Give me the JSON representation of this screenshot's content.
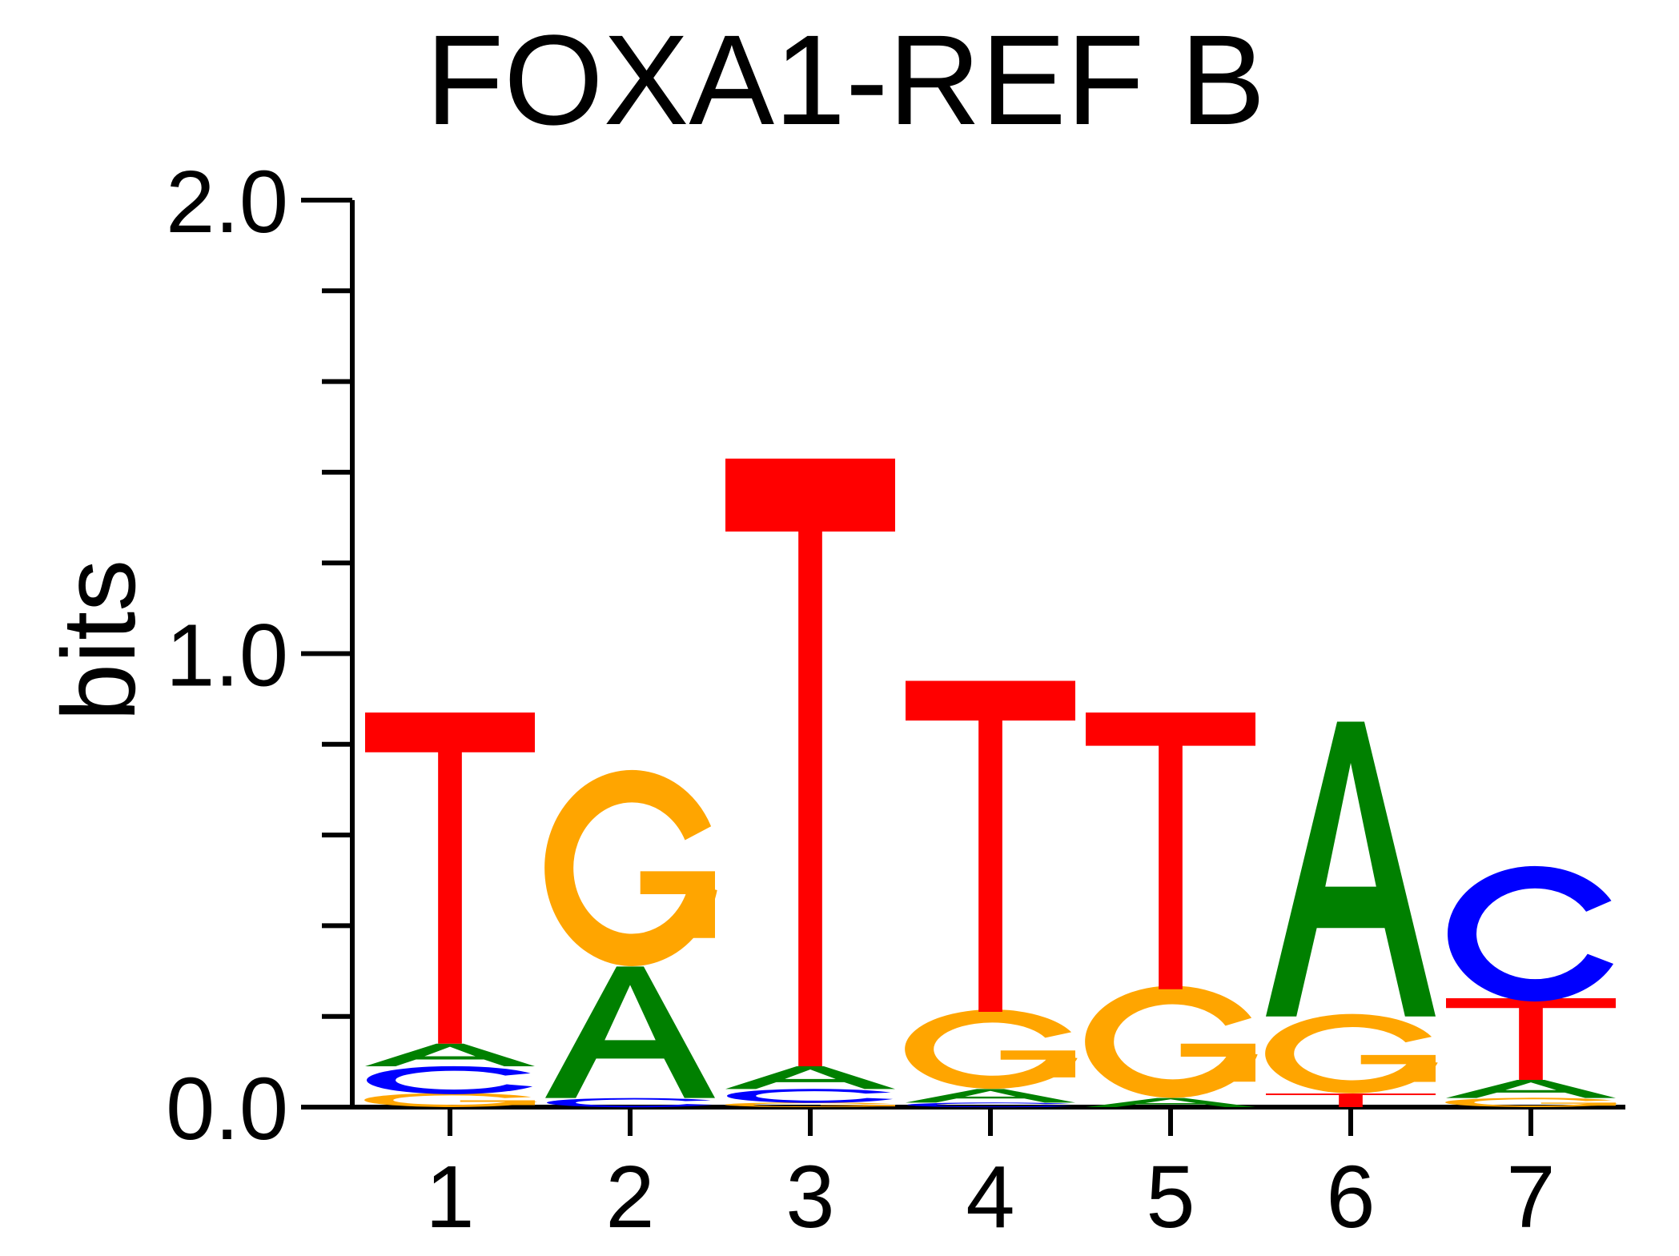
{
  "chart_data": {
    "type": "sequence-logo",
    "title": "FOXA1-REF B",
    "ylabel": "bits",
    "xlabel": "",
    "ylim": [
      0,
      2
    ],
    "yticks": [
      "0.0",
      "1.0",
      "2.0"
    ],
    "positions": [
      "1",
      "2",
      "3",
      "4",
      "5",
      "6",
      "7"
    ],
    "colors": {
      "A": "#008000",
      "C": "#0000ff",
      "G": "#ffa500",
      "T": "#ff0000"
    },
    "stacks": [
      [
        {
          "letter": "G",
          "bits": 0.03
        },
        {
          "letter": "C",
          "bits": 0.06
        },
        {
          "letter": "A",
          "bits": 0.05
        },
        {
          "letter": "T",
          "bits": 0.73
        }
      ],
      [
        {
          "letter": "C",
          "bits": 0.02
        },
        {
          "letter": "A",
          "bits": 0.29
        },
        {
          "letter": "G",
          "bits": 0.42
        }
      ],
      [
        {
          "letter": "G",
          "bits": 0.01
        },
        {
          "letter": "C",
          "bits": 0.03
        },
        {
          "letter": "A",
          "bits": 0.05
        },
        {
          "letter": "T",
          "bits": 1.34
        }
      ],
      [
        {
          "letter": "C",
          "bits": 0.01
        },
        {
          "letter": "A",
          "bits": 0.03
        },
        {
          "letter": "G",
          "bits": 0.17
        },
        {
          "letter": "T",
          "bits": 0.73
        }
      ],
      [
        {
          "letter": "A",
          "bits": 0.02
        },
        {
          "letter": "G",
          "bits": 0.24
        },
        {
          "letter": "T",
          "bits": 0.61
        }
      ],
      [
        {
          "letter": "T",
          "bits": 0.03
        },
        {
          "letter": "G",
          "bits": 0.17
        },
        {
          "letter": "A",
          "bits": 0.65
        }
      ],
      [
        {
          "letter": "G",
          "bits": 0.02
        },
        {
          "letter": "A",
          "bits": 0.04
        },
        {
          "letter": "T",
          "bits": 0.18
        },
        {
          "letter": "C",
          "bits": 0.29
        }
      ]
    ]
  }
}
